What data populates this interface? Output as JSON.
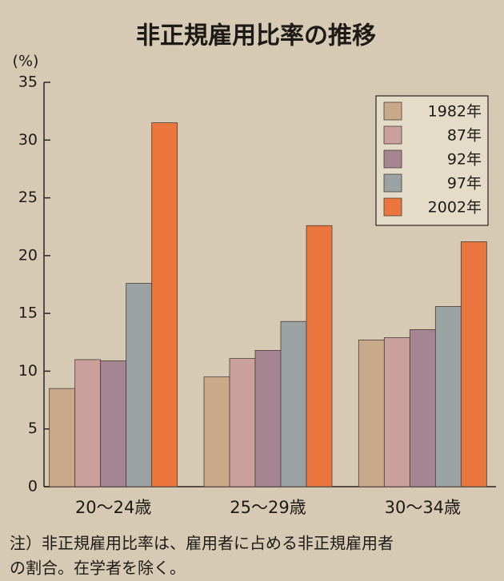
{
  "chart_data": {
    "type": "bar",
    "title": "非正規雇用比率の推移",
    "y_label": "(%)",
    "categories": [
      "20～24歳",
      "25～29歳",
      "30～34歳"
    ],
    "series": [
      {
        "name": "1982年",
        "color": "#c8a989",
        "values": [
          8.5,
          9.5,
          12.7
        ]
      },
      {
        "name": "87年",
        "color": "#c9a09c",
        "values": [
          11.0,
          11.1,
          12.9
        ]
      },
      {
        "name": "92年",
        "color": "#a68592",
        "values": [
          10.9,
          11.8,
          13.6
        ]
      },
      {
        "name": "97年",
        "color": "#9ba2a4",
        "values": [
          17.6,
          14.3,
          15.6
        ]
      },
      {
        "name": "2002年",
        "color": "#ea763d",
        "values": [
          31.5,
          22.6,
          21.2
        ]
      }
    ],
    "ylim": [
      0,
      35
    ],
    "yticks": [
      0,
      5,
      10,
      15,
      20,
      25,
      30,
      35
    ],
    "legend": "upper right",
    "notes": [
      "注）非正規雇用比率は、雇用者に占める非正規雇用者",
      "の割合。在学者を除く。"
    ]
  }
}
